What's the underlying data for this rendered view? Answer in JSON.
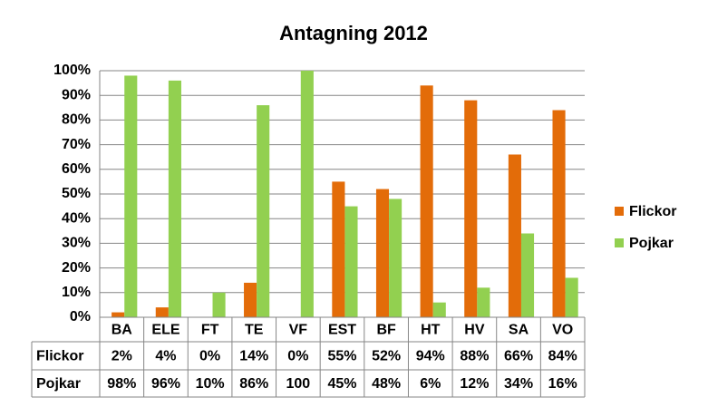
{
  "chart_data": {
    "type": "bar",
    "title": "Antagning 2012",
    "categories": [
      "BA",
      "ELE",
      "FT",
      "TE",
      "VF",
      "EST",
      "BF",
      "HT",
      "HV",
      "SA",
      "VO"
    ],
    "series": [
      {
        "name": "Flickor",
        "color": "#e36c09",
        "values": [
          2,
          4,
          0,
          14,
          0,
          55,
          52,
          94,
          88,
          66,
          84
        ],
        "value_labels": [
          "2%",
          "4%",
          "0%",
          "14%",
          "0%",
          "55%",
          "52%",
          "94%",
          "88%",
          "66%",
          "84%"
        ]
      },
      {
        "name": "Pojkar",
        "color": "#92d050",
        "values": [
          98,
          96,
          10,
          86,
          100,
          45,
          48,
          6,
          12,
          34,
          16
        ],
        "value_labels": [
          "98%",
          "96%",
          "10%",
          "86%",
          "100",
          "45%",
          "48%",
          "6%",
          "12%",
          "34%",
          "16%"
        ]
      }
    ],
    "ylim": [
      0,
      100
    ],
    "yticks": [
      {
        "value": 0,
        "label": "0%"
      },
      {
        "value": 10,
        "label": "10%"
      },
      {
        "value": 20,
        "label": "20%"
      },
      {
        "value": 30,
        "label": "30%"
      },
      {
        "value": 40,
        "label": "40%"
      },
      {
        "value": 50,
        "label": "50%"
      },
      {
        "value": 60,
        "label": "60%"
      },
      {
        "value": 70,
        "label": "70%"
      },
      {
        "value": 80,
        "label": "80%"
      },
      {
        "value": 90,
        "label": "90%"
      },
      {
        "value": 100,
        "label": "100%"
      }
    ],
    "grid": true,
    "legend": "right"
  }
}
